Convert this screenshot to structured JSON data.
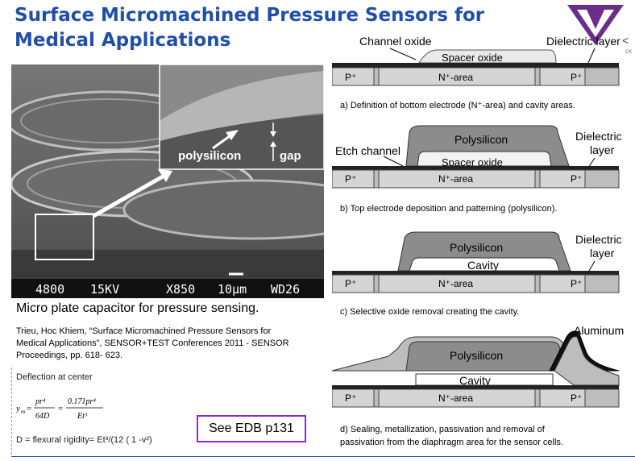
{
  "slide": {
    "title": "Surface Micromachined Pressure Sensors for Medical Applications",
    "nav_arrow": "<",
    "nav_sub": "CK",
    "brand_color": "#1f4fa8",
    "logo_color": "#6b2d8c"
  },
  "sem": {
    "polysilicon_label": "polysilicon",
    "gap_label": "gap",
    "footer": [
      "4800",
      "15KV",
      "X850",
      "10µm",
      "WD26"
    ],
    "caption": "Micro plate capacitor for pressure sensing."
  },
  "citation": {
    "line1": "Trieu, Hoc Khiem, “Surface Micromachined Pressure Sensors for",
    "line2": "Medical Applications”, SENSOR+TEST Conferences 2011 - SENSOR",
    "line3": "Proceedings, pp. 618- 623."
  },
  "deflection": {
    "title": "Deflection at center",
    "lhs": "y",
    "lhs_sub": "m",
    "f1_num": "pr⁴",
    "f1_den": "64D",
    "f2_num": "0.171pr⁴",
    "f2_den": "Et³",
    "rigidity": "D = flexural rigidity= Et³/(12 ( 1 -v²)"
  },
  "edb_button": "See EDB p131",
  "diagrams": {
    "a": {
      "channel_oxide": "Channel oxide",
      "dielectric": "Dielectric layer",
      "spacer": "Spacer oxide",
      "p_left": "P⁺",
      "n_area": "N⁺-area",
      "p_right": "P⁺",
      "caption": "a) Definition of bottom electrode (N⁺-area) and cavity areas."
    },
    "b": {
      "etch_channel": "Etch channel",
      "polysilicon": "Polysilicon",
      "dielectric_1": "Dielectric",
      "dielectric_2": "layer",
      "spacer": "Spacer oxide",
      "p_left": "P⁺",
      "n_area": "N⁺-area",
      "p_right": "P⁺",
      "caption": "b) Top electrode deposition and patterning (polysilicon)."
    },
    "c": {
      "polysilicon": "Polysilicon",
      "cavity": "Cavity",
      "dielectric_1": "Dielectric",
      "dielectric_2": "layer",
      "p_left": "P⁺",
      "n_area": "N⁺-area",
      "p_right": "P⁺",
      "caption": "c) Selective oxide removal creating the cavity."
    },
    "d": {
      "aluminum": "Aluminum",
      "polysilicon": "Polysilicon",
      "cavity": "Cavity",
      "p_left": "P⁺",
      "n_area": "N⁺-area",
      "p_right": "P⁺",
      "caption_1": "d)  Sealing,  metallization,  passivation  and  removal  of",
      "caption_2": "passivation from the diaphragm area for the sensor cells."
    }
  }
}
